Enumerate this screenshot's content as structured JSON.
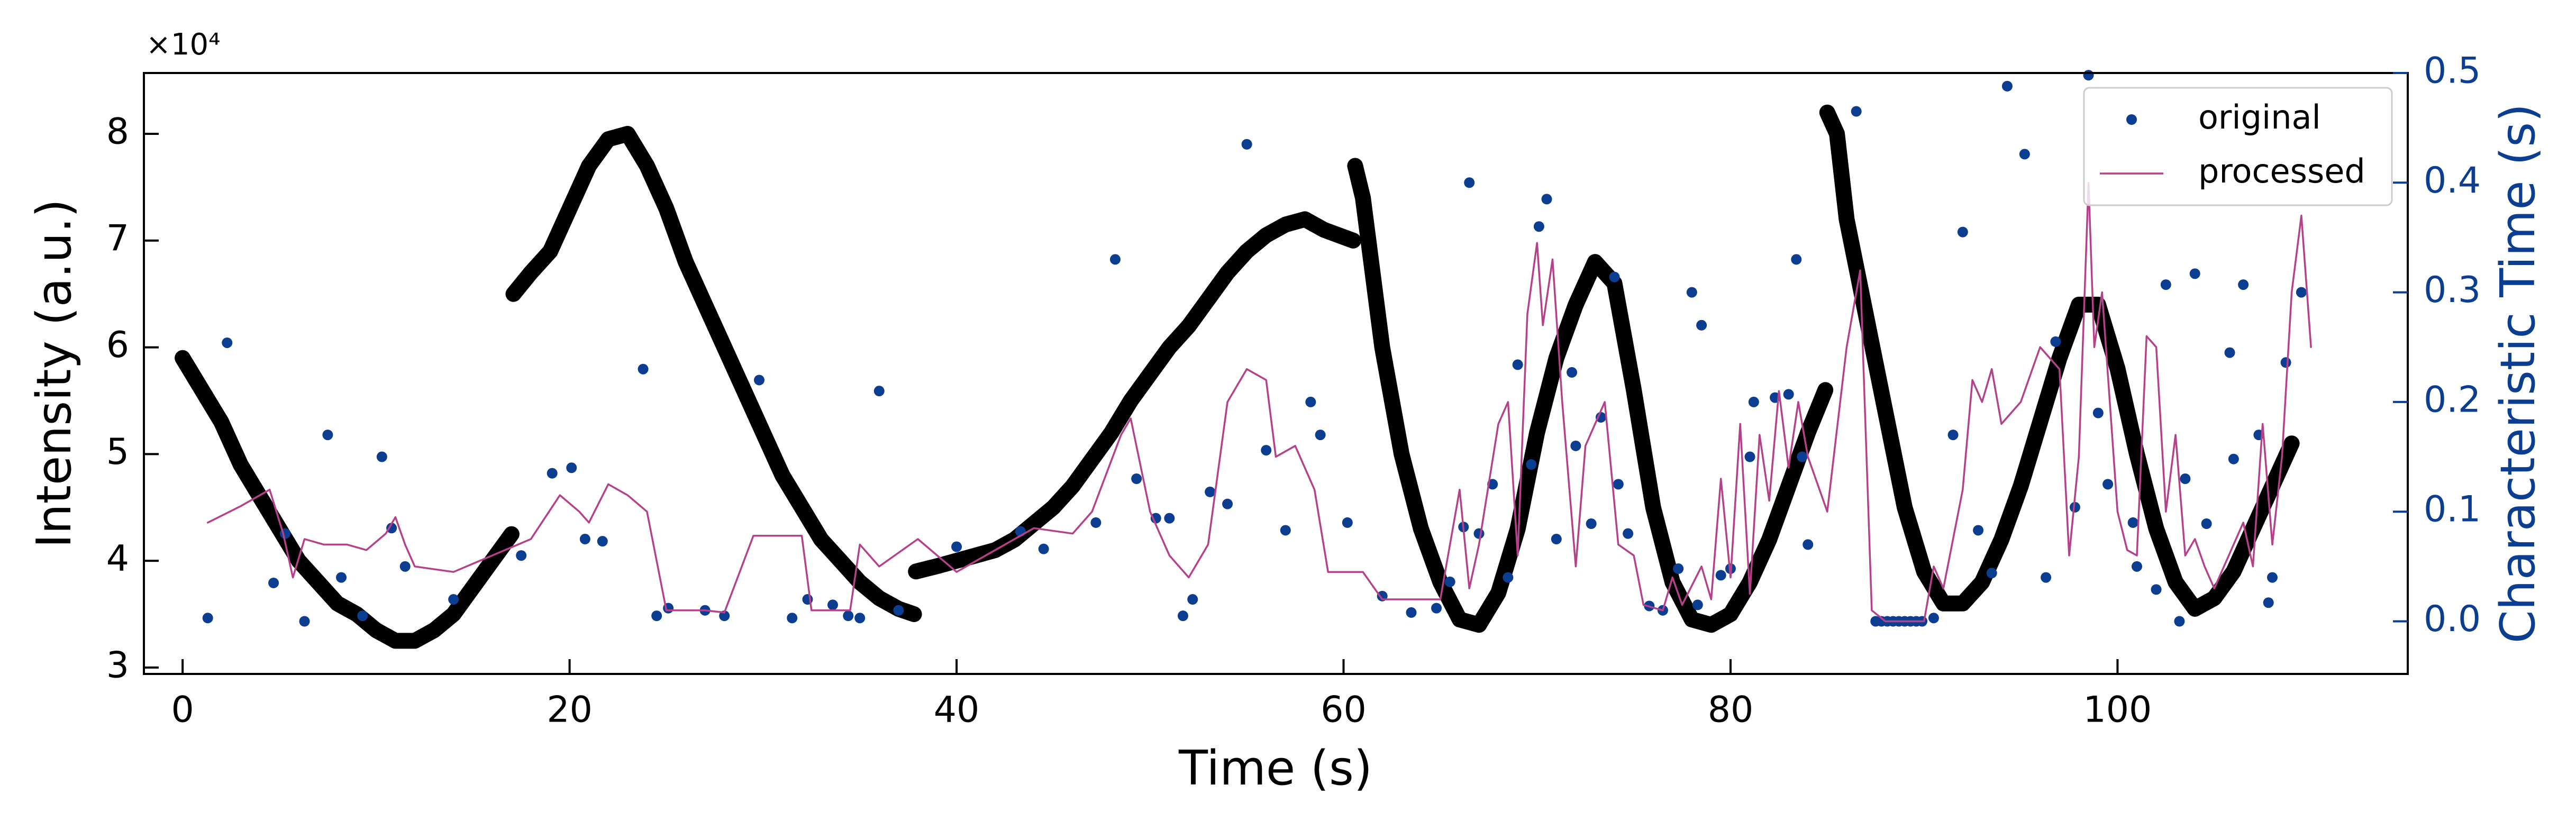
{
  "chart_data": {
    "type": "scatter",
    "xlabel": "Time (s)",
    "ylabel": "Intensity (a.u.)",
    "y2label": "Characteristic Time (s)",
    "y_offset_label": "×10⁴",
    "xlim": [
      -2,
      115
    ],
    "xticks": [
      0,
      20,
      40,
      60,
      80,
      100
    ],
    "ylim": [
      2.94,
      8.57
    ],
    "yticks": [
      3,
      4,
      5,
      6,
      7,
      8
    ],
    "y2lim": [
      -0.048,
      0.5
    ],
    "y2ticks": [
      {
        "value": 0,
        "label": "0.0"
      },
      0.1,
      0.2,
      0.3,
      0.4,
      0.5
    ],
    "y2color": "#0b3d91",
    "legend": "upper right",
    "series": [
      {
        "type": "line",
        "color": "#000000",
        "x": [
          0,
          1,
          2,
          3,
          4,
          5,
          6,
          7,
          8,
          9,
          10,
          11,
          12,
          13,
          14,
          15,
          16,
          17
        ],
        "values": [
          5.9,
          5.6,
          5.3,
          4.9,
          4.6,
          4.3,
          4.0,
          3.8,
          3.6,
          3.5,
          3.35,
          3.25,
          3.25,
          3.35,
          3.5,
          3.75,
          4.0,
          4.25
        ]
      },
      {
        "type": "line",
        "color": "#000000",
        "x": [
          17.1,
          18,
          19,
          20,
          21,
          22,
          23,
          24,
          25,
          26,
          27,
          28,
          29,
          30,
          31,
          32,
          33,
          34,
          35,
          36,
          37,
          37.8
        ],
        "values": [
          6.5,
          6.7,
          6.9,
          7.3,
          7.7,
          7.95,
          8.0,
          7.7,
          7.3,
          6.8,
          6.4,
          6.0,
          5.6,
          5.2,
          4.8,
          4.5,
          4.2,
          4.0,
          3.8,
          3.65,
          3.55,
          3.5
        ]
      },
      {
        "type": "line",
        "color": "#000000",
        "x": [
          37.9,
          39,
          40,
          41,
          42,
          43,
          44,
          45,
          46,
          47,
          48,
          49,
          50,
          51,
          52,
          53,
          54,
          55,
          56,
          57,
          58,
          59,
          60.5
        ],
        "values": [
          3.9,
          3.95,
          4.0,
          4.05,
          4.1,
          4.2,
          4.35,
          4.5,
          4.7,
          4.95,
          5.2,
          5.5,
          5.75,
          6.0,
          6.2,
          6.45,
          6.7,
          6.9,
          7.05,
          7.15,
          7.2,
          7.1,
          7.0
        ]
      },
      {
        "type": "line",
        "color": "#000000",
        "x": [
          60.6,
          61,
          62,
          63,
          64,
          65,
          66,
          67,
          68,
          69,
          70,
          71,
          72,
          73,
          74,
          75,
          76,
          77,
          78,
          79,
          80,
          81,
          82,
          83,
          84,
          84.9
        ],
        "values": [
          7.7,
          7.4,
          6.0,
          5.0,
          4.3,
          3.8,
          3.45,
          3.4,
          3.7,
          4.3,
          5.2,
          5.9,
          6.4,
          6.8,
          6.6,
          5.6,
          4.5,
          3.8,
          3.45,
          3.4,
          3.5,
          3.8,
          4.2,
          4.7,
          5.2,
          5.6
        ]
      },
      {
        "type": "line",
        "color": "#000000",
        "x": [
          85,
          85.5,
          86,
          87,
          88,
          89,
          90,
          91,
          92,
          93,
          94,
          95,
          96,
          97,
          98,
          99,
          100,
          101,
          102,
          103,
          104,
          105,
          106,
          107,
          108,
          109
        ],
        "values": [
          8.2,
          8.0,
          7.2,
          6.3,
          5.4,
          4.5,
          3.9,
          3.6,
          3.6,
          3.8,
          4.2,
          4.7,
          5.3,
          5.9,
          6.4,
          6.4,
          5.8,
          5.0,
          4.3,
          3.8,
          3.55,
          3.65,
          3.9,
          4.3,
          4.7,
          5.1
        ]
      },
      {
        "type": "scatter",
        "name": "original",
        "color": "#0b3d91",
        "axis": "y2",
        "x": [
          1.3,
          2.3,
          4.7,
          5.3,
          6.3,
          7.5,
          8.2,
          9.3,
          10.3,
          10.8,
          11.5,
          14,
          17.5,
          19.1,
          20.1,
          20.8,
          21.7,
          23.8,
          24.5,
          25.1,
          27,
          28,
          29.8,
          31.5,
          32.3,
          33.6,
          34.4,
          35,
          36,
          37,
          40,
          43.3,
          44.5,
          47.2,
          48.2,
          49.3,
          50.3,
          51,
          51.7,
          52.2,
          53.1,
          54,
          55,
          56,
          57,
          58.3,
          58.8,
          60.2,
          62,
          63.5,
          64.8,
          65.5,
          66.2,
          66.5,
          67,
          67.7,
          68.5,
          69,
          69.7,
          70.1,
          70.5,
          71,
          71.8,
          72,
          72.8,
          73.3,
          74,
          74.2,
          74.7,
          75.8,
          76.5,
          77.3,
          78,
          78.3,
          78.5,
          79.5,
          80,
          81,
          81.2,
          82.3,
          83,
          83.4,
          83.7,
          84,
          86.5,
          87.5,
          87.8,
          88.1,
          88.4,
          88.7,
          89,
          89.3,
          89.6,
          89.9,
          90.5,
          91.5,
          92,
          92.8,
          93.5,
          94.3,
          95.2,
          96.3,
          96.8,
          97.8,
          98.5,
          99,
          99.5,
          100.8,
          101,
          102,
          102.5,
          103.2,
          103.5,
          104,
          104.6,
          105.8,
          106,
          106.5,
          107.3,
          107.8,
          108,
          108.7,
          109.5
        ],
        "values": [
          0.003,
          0.254,
          0.035,
          0.08,
          0.0,
          0.17,
          0.04,
          0.005,
          0.15,
          0.085,
          0.05,
          0.02,
          0.06,
          0.135,
          0.14,
          0.075,
          0.073,
          0.23,
          0.005,
          0.012,
          0.01,
          0.005,
          0.22,
          0.003,
          0.02,
          0.015,
          0.005,
          0.003,
          0.21,
          0.01,
          0.068,
          0.082,
          0.066,
          0.09,
          0.33,
          0.13,
          0.094,
          0.094,
          0.005,
          0.02,
          0.118,
          0.107,
          0.435,
          0.156,
          0.083,
          0.2,
          0.17,
          0.09,
          0.023,
          0.008,
          0.012,
          0.036,
          0.086,
          0.4,
          0.08,
          0.125,
          0.04,
          0.234,
          0.143,
          0.36,
          0.385,
          0.075,
          0.227,
          0.16,
          0.089,
          0.186,
          0.314,
          0.125,
          0.08,
          0.014,
          0.01,
          0.048,
          0.3,
          0.015,
          0.27,
          0.042,
          0.048,
          0.15,
          0.2,
          0.204,
          0.207,
          0.33,
          0.15,
          0.07,
          0.465,
          0.0,
          0.0,
          0.0,
          0.0,
          0.0,
          0.0,
          0.0,
          0.0,
          0.0,
          0.003,
          0.17,
          0.355,
          0.083,
          0.044,
          0.488,
          0.426,
          0.04,
          0.255,
          0.104,
          0.498,
          0.19,
          0.125,
          0.09,
          0.05,
          0.029,
          0.307,
          0.0,
          0.13,
          0.317,
          0.089,
          0.245,
          0.148,
          0.307,
          0.17,
          0.017,
          0.04,
          0.236,
          0.3
        ]
      },
      {
        "type": "line",
        "name": "processed",
        "color": "#b5418a",
        "axis": "y2",
        "x": [
          1.3,
          3,
          4.5,
          5.2,
          5.7,
          6.3,
          7.3,
          8.5,
          9.5,
          10.5,
          11,
          11.5,
          12,
          14,
          16,
          18,
          19.5,
          20.5,
          21,
          22,
          23,
          24,
          25,
          27,
          28,
          29.5,
          32,
          32.5,
          34.5,
          35,
          36,
          38,
          40,
          42,
          44,
          46,
          47,
          48.5,
          49,
          50,
          51,
          52,
          53,
          54,
          55,
          56,
          56.5,
          57.5,
          58.5,
          59.2,
          61,
          62,
          64,
          65,
          66,
          66.5,
          67,
          68,
          68.5,
          69,
          69.5,
          70,
          70.3,
          70.8,
          71.3,
          72,
          72.5,
          73.5,
          74.2,
          75,
          75.5,
          76.5,
          77,
          77.5,
          78.5,
          79,
          79.5,
          80,
          80.5,
          81,
          81.5,
          82,
          82.5,
          83,
          83.5,
          84,
          85,
          86,
          86.7,
          87.3,
          88,
          90,
          90.5,
          91,
          92,
          92.5,
          93,
          93.5,
          94,
          95,
          96,
          97,
          97.5,
          98,
          98.5,
          98.8,
          99.2,
          100,
          100.5,
          101,
          101.5,
          102,
          102.5,
          103,
          103.5,
          104,
          104.5,
          105,
          106,
          106.5,
          107,
          107.5,
          108,
          108.5,
          109,
          109.5,
          110
        ],
        "values": [
          0.09,
          0.105,
          0.12,
          0.08,
          0.04,
          0.075,
          0.07,
          0.07,
          0.065,
          0.08,
          0.095,
          0.07,
          0.05,
          0.045,
          0.06,
          0.075,
          0.115,
          0.1,
          0.09,
          0.125,
          0.115,
          0.1,
          0.01,
          0.01,
          0.008,
          0.078,
          0.078,
          0.01,
          0.01,
          0.07,
          0.05,
          0.075,
          0.045,
          0.065,
          0.085,
          0.08,
          0.1,
          0.17,
          0.185,
          0.1,
          0.06,
          0.04,
          0.07,
          0.2,
          0.23,
          0.22,
          0.15,
          0.16,
          0.12,
          0.045,
          0.045,
          0.02,
          0.02,
          0.02,
          0.12,
          0.03,
          0.07,
          0.18,
          0.2,
          0.06,
          0.28,
          0.345,
          0.27,
          0.33,
          0.2,
          0.05,
          0.16,
          0.2,
          0.07,
          0.06,
          0.015,
          0.01,
          0.04,
          0.015,
          0.05,
          0.02,
          0.13,
          0.04,
          0.18,
          0.025,
          0.17,
          0.11,
          0.21,
          0.14,
          0.2,
          0.15,
          0.1,
          0.25,
          0.32,
          0.01,
          0.0,
          0.0,
          0.05,
          0.03,
          0.12,
          0.22,
          0.2,
          0.23,
          0.18,
          0.2,
          0.25,
          0.23,
          0.06,
          0.15,
          0.4,
          0.25,
          0.3,
          0.1,
          0.065,
          0.06,
          0.26,
          0.25,
          0.1,
          0.17,
          0.06,
          0.075,
          0.05,
          0.03,
          0.07,
          0.09,
          0.05,
          0.18,
          0.07,
          0.15,
          0.3,
          0.37,
          0.25
        ]
      }
    ]
  }
}
